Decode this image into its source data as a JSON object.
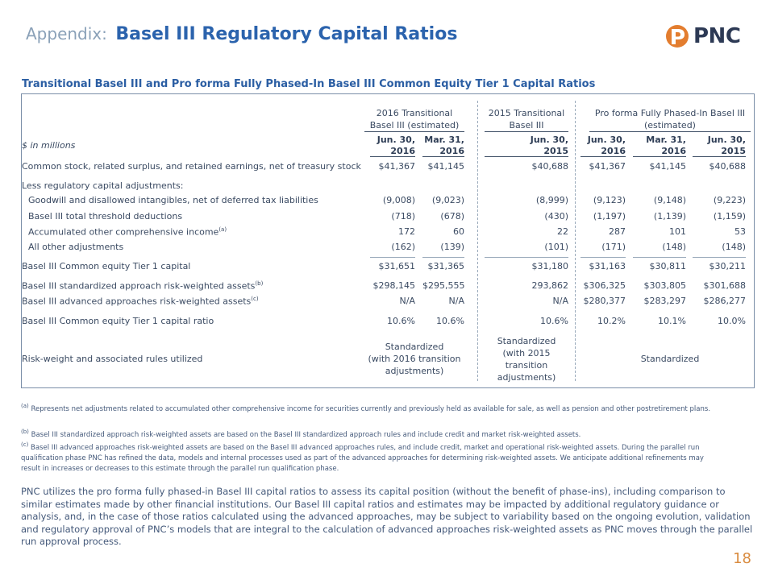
{
  "header": {
    "appendix": "Appendix:",
    "title": "Basel III Regulatory Capital Ratios"
  },
  "logo": {
    "text": "PNC",
    "icon": "pnc-logo-icon",
    "color": "#e37d2f"
  },
  "subtitle": "Transitional Basel III and Pro forma Fully Phased-In Basel III Common Equity Tier 1 Capital Ratios",
  "table": {
    "group_headers": {
      "transitional_2016": [
        "2016 Transitional",
        "Basel III (estimated)"
      ],
      "transitional_2015": [
        "2015 Transitional",
        "Basel III"
      ],
      "proforma": [
        "Pro forma Fully Phased-In Basel III",
        "(estimated)"
      ]
    },
    "units": "$ in millions",
    "columns": [
      [
        "Jun. 30,",
        "2016"
      ],
      [
        "Mar. 31,",
        "2016"
      ],
      [
        "Jun. 30,",
        "2015"
      ],
      [
        "Jun. 30,",
        "2016"
      ],
      [
        "Mar. 31,",
        "2016"
      ],
      [
        "Jun. 30,",
        "2015"
      ]
    ],
    "rows": [
      {
        "label": "Common stock, related surplus, and retained earnings, net of treasury stock",
        "values": [
          "$41,367",
          "$41,145",
          "$40,688",
          "$41,367",
          "$41,145",
          "$40,688"
        ]
      },
      {
        "label": "Less regulatory capital adjustments:",
        "values": [
          "",
          "",
          "",
          "",
          "",
          ""
        ]
      },
      {
        "label": "Goodwill and disallowed intangibles, net of deferred tax liabilities",
        "values": [
          "(9,008)",
          "(9,023)",
          "(8,999)",
          "(9,123)",
          "(9,148)",
          "(9,223)"
        ]
      },
      {
        "label": "Basel III total threshold deductions",
        "values": [
          "(718)",
          "(678)",
          "(430)",
          "(1,197)",
          "(1,139)",
          "(1,159)"
        ]
      },
      {
        "label": "Accumulated other comprehensive income",
        "sup": "(a)",
        "values": [
          "172",
          "60",
          "22",
          "287",
          "101",
          "53"
        ]
      },
      {
        "label": "All other adjustments",
        "values": [
          "(162)",
          "(139)",
          "(101)",
          "(171)",
          "(148)",
          "(148)"
        ]
      },
      {
        "label": "Basel III Common equity Tier 1 capital",
        "values": [
          "$31,651",
          "$31,365",
          "$31,180",
          "$31,163",
          "$30,811",
          "$30,211"
        ]
      },
      {
        "label": "Basel III standardized approach risk-weighted assets",
        "sup": "(b)",
        "values": [
          "$298,145",
          "$295,555",
          "293,862",
          "$306,325",
          "$303,805",
          "$301,688"
        ]
      },
      {
        "label": "Basel III advanced approaches risk-weighted assets",
        "sup": "(c)",
        "values": [
          "N/A",
          "N/A",
          "N/A",
          "$280,377",
          "$283,297",
          "$286,277"
        ]
      },
      {
        "label": "Basel III Common equity Tier 1 capital ratio",
        "values": [
          "10.6%",
          "10.6%",
          "10.6%",
          "10.2%",
          "10.1%",
          "10.0%"
        ]
      }
    ],
    "rules": {
      "label": "Risk-weight and associated rules utilized",
      "t2016": [
        "Standardized",
        "(with 2016 transition",
        "adjustments)"
      ],
      "t2015": [
        "Standardized",
        "(with 2015",
        "transition",
        "adjustments)"
      ],
      "proforma": "Standardized"
    }
  },
  "notes": {
    "a_sup": "(a)",
    "a": "Represents net adjustments related to accumulated other comprehensive income for securities currently and previously held as available for sale, as well as pension and other postretirement plans.",
    "b_sup": "(b)",
    "b": "Basel III standardized approach risk-weighted assets are based on the Basel III standardized approach rules and include credit and market risk-weighted assets.",
    "c_sup": "(c)",
    "c1": "Basel III advanced approaches risk-weighted assets are based on the Basel III advanced approaches rules, and include credit, market and operational risk-weighted assets. During the parallel run",
    "c2": "qualification phase PNC has refined the data, models and internal processes used as part of the advanced approaches for determining risk-weighted assets. We anticipate additional refinements may",
    "c3": "result in increases or decreases to this estimate through the parallel run qualification phase."
  },
  "paragraph": "PNC utilizes the pro forma fully phased-in Basel III capital ratios to assess its capital position (without the benefit of phase-ins), including comparison to similar estimates made by other financial institutions. Our Basel III capital ratios and estimates may be impacted by additional regulatory guidance or analysis, and, in the case of those ratios calculated using the advanced approaches, may be subject to variability based on the ongoing evolution, validation and regulatory approval of PNC’s models that are integral to the calculation of advanced approaches risk-weighted assets as PNC moves through the parallel run approval process.",
  "page_number": "18"
}
